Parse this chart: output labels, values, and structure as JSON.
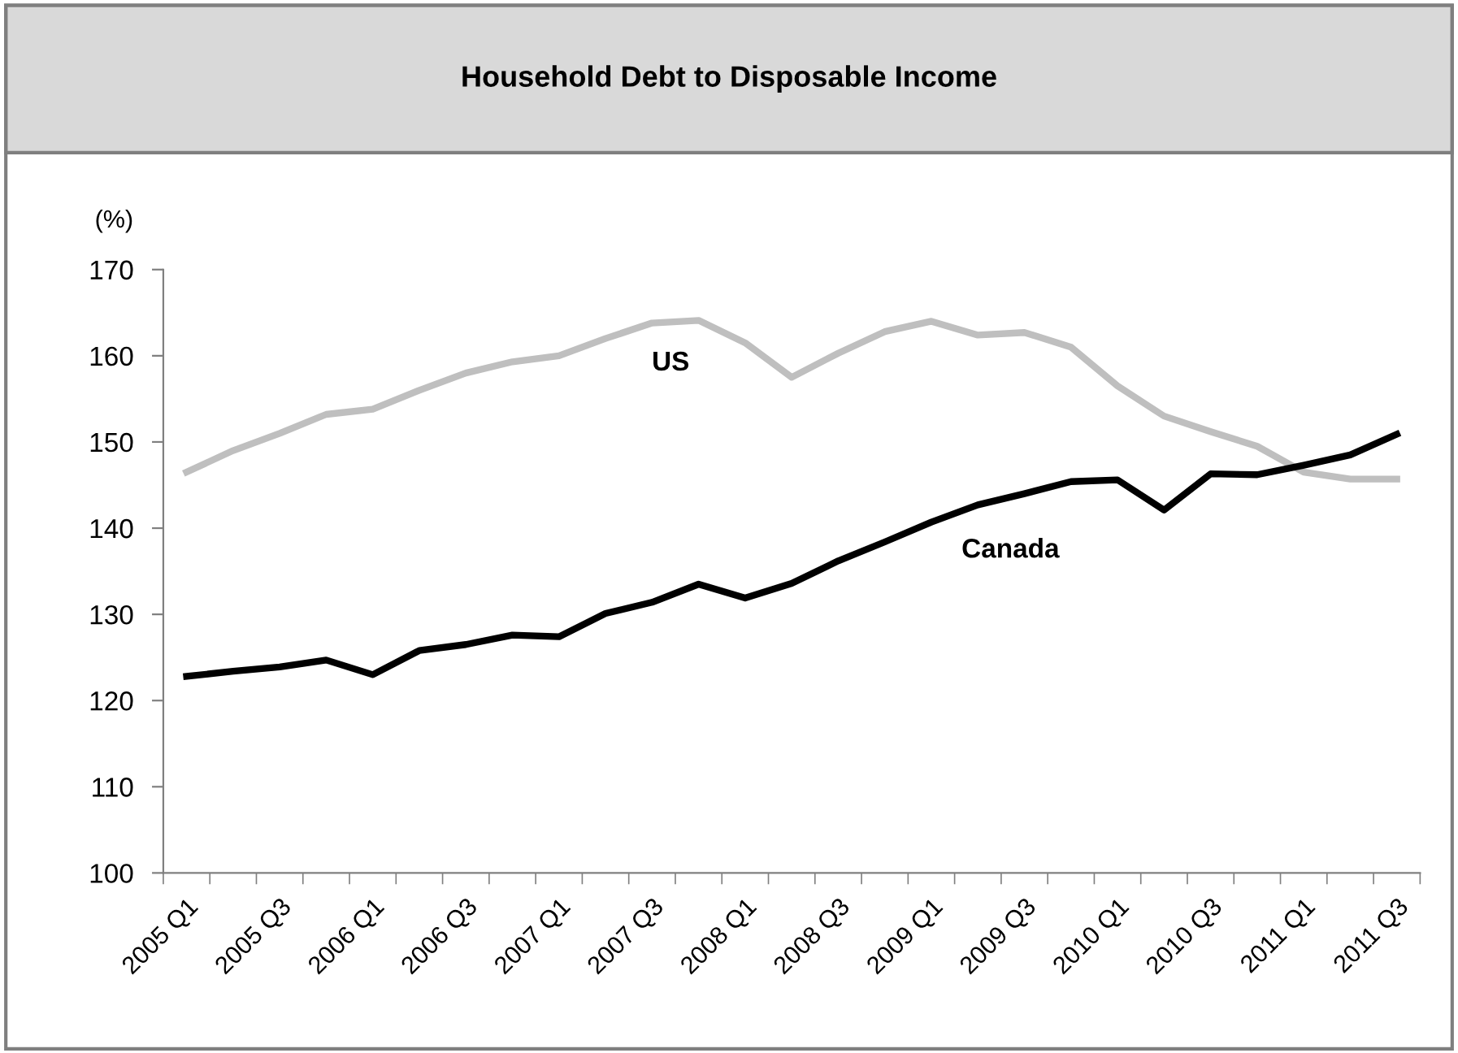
{
  "chart_data": {
    "type": "line",
    "title": "Household Debt to Disposable Income",
    "ylabel": "(%)",
    "categories": [
      "2005 Q1",
      null,
      "2005 Q3",
      null,
      "2006 Q1",
      null,
      "2006 Q3",
      null,
      "2007 Q1",
      null,
      "2007 Q3",
      null,
      "2008 Q1",
      null,
      "2008 Q3",
      null,
      "2009 Q1",
      null,
      "2009 Q3",
      null,
      "2010 Q1",
      null,
      "2010 Q3",
      null,
      "2011 Q1",
      null,
      "2011 Q3"
    ],
    "series": [
      {
        "name": "US",
        "color": "#bfbfbf",
        "values": [
          146.5,
          149,
          151,
          153.2,
          153.8,
          156,
          158,
          159.3,
          160,
          162,
          163.8,
          164.1,
          161.5,
          157.5,
          160.3,
          162.8,
          164,
          162.4,
          162.7,
          161,
          156.5,
          153,
          151.2,
          149.5,
          146.5,
          145.7,
          145.7
        ]
      },
      {
        "name": "Canada",
        "color": "#000000",
        "values": [
          122.8,
          123.4,
          123.9,
          124.7,
          123,
          125.8,
          126.5,
          127.6,
          127.4,
          130.1,
          131.4,
          133.5,
          131.9,
          133.6,
          136.2,
          138.4,
          140.7,
          142.7,
          144,
          145.4,
          145.6,
          142.1,
          146.3,
          146.2,
          147.3,
          148.5,
          150.9
        ]
      }
    ],
    "ylim": [
      100,
      170
    ],
    "yticks": [
      100,
      110,
      120,
      130,
      140,
      150,
      160,
      170
    ],
    "grid": false,
    "legend": false,
    "marker": "none",
    "line_style": "solid"
  }
}
